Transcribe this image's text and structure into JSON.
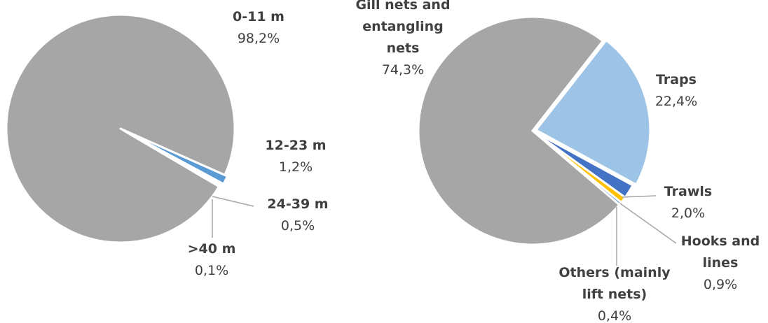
{
  "chart_data": [
    {
      "type": "pie",
      "title": "",
      "slices": [
        {
          "label": "0-11 m",
          "value": 98.2,
          "value_label": "98,2%",
          "color": "#a6a6a6"
        },
        {
          "label": "12-23 m",
          "value": 1.2,
          "value_label": "1,2%",
          "color": "#5b9bd5"
        },
        {
          "label": "24-39 m",
          "value": 0.5,
          "value_label": "0,5%",
          "color": "#ffffff"
        },
        {
          "label": ">40 m",
          "value": 0.1,
          "value_label": "0,1%",
          "color": "#4472c4"
        }
      ]
    },
    {
      "type": "pie",
      "title": "",
      "slices": [
        {
          "label": "Gill nets and entangling nets",
          "label_lines": [
            "Gill nets and",
            "entangling",
            "nets"
          ],
          "value": 74.3,
          "value_label": "74,3%",
          "color": "#a6a6a6"
        },
        {
          "label": "Traps",
          "value": 22.4,
          "value_label": "22,4%",
          "color": "#9dc3e6"
        },
        {
          "label": "Trawls",
          "value": 2.0,
          "value_label": "2,0%",
          "color": "#4472c4"
        },
        {
          "label": "Hooks and lines",
          "label_lines": [
            "Hooks and",
            "lines"
          ],
          "value": 0.9,
          "value_label": "0,9%",
          "color": "#ffc000"
        },
        {
          "label": "Others (mainly lift nets)",
          "label_lines": [
            "Others (mainly",
            "lift nets)"
          ],
          "value": 0.4,
          "value_label": "0,4%",
          "color": "#5b9bd5"
        }
      ]
    }
  ]
}
